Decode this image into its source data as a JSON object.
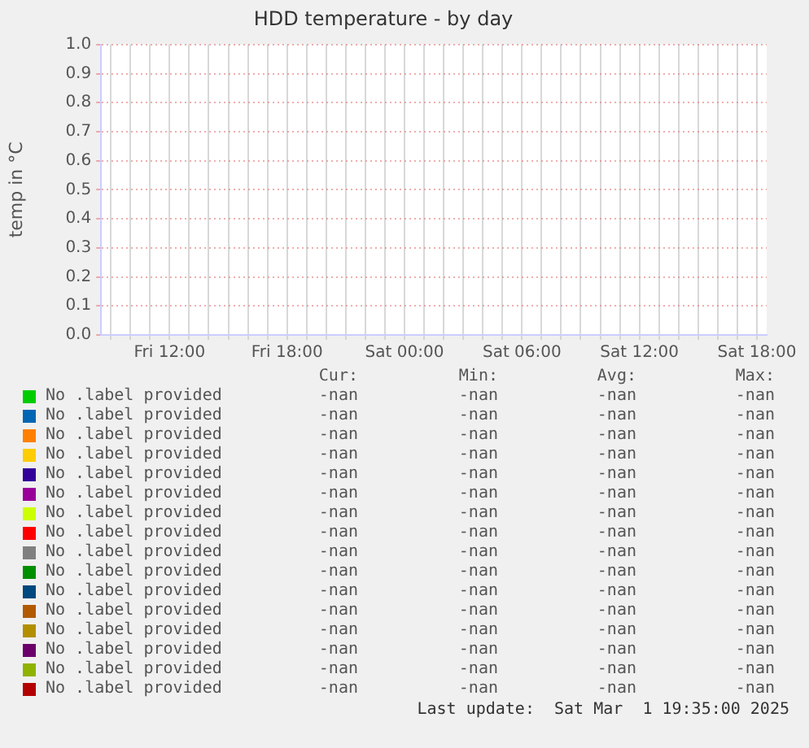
{
  "chart_data": {
    "type": "line",
    "title": "HDD temperature - by day",
    "ylabel": "temp in °C",
    "categories": [
      null,
      null,
      null,
      "Fri 12:00",
      null,
      null,
      null,
      null,
      null,
      "Fri 18:00",
      null,
      null,
      null,
      null,
      null,
      "Sat 00:00",
      null,
      null,
      null,
      null,
      null,
      "Sat 06:00",
      null,
      null,
      null,
      null,
      null,
      "Sat 12:00",
      null,
      null,
      null,
      null,
      null,
      "Sat 18:00"
    ],
    "ylim": [
      0,
      1
    ],
    "yticks": [
      {
        "value": 0,
        "label": "0.0"
      },
      {
        "value": 0.1,
        "label": "0.1"
      },
      {
        "value": 0.2,
        "label": "0.2"
      },
      {
        "value": 0.3,
        "label": "0.3"
      },
      {
        "value": 0.4,
        "label": "0.4"
      },
      {
        "value": 0.5,
        "label": "0.5"
      },
      {
        "value": 0.6,
        "label": "0.6"
      },
      {
        "value": 0.7,
        "label": "0.7"
      },
      {
        "value": 0.8,
        "label": "0.8"
      },
      {
        "value": 0.9,
        "label": "0.9"
      },
      {
        "value": 1,
        "label": "1.0"
      }
    ],
    "grid": true,
    "legend": "bottom",
    "series": [
      {
        "name": "No .label provided",
        "color": "#00cc00",
        "values": [
          null,
          null,
          null,
          null,
          null,
          null,
          null,
          null,
          null,
          null,
          null,
          null,
          null,
          null,
          null,
          null,
          null,
          null,
          null,
          null,
          null,
          null,
          null,
          null,
          null,
          null,
          null,
          null,
          null,
          null,
          null,
          null,
          null,
          null
        ]
      },
      {
        "name": "No .label provided",
        "color": "#0066b3",
        "values": [
          null,
          null,
          null,
          null,
          null,
          null,
          null,
          null,
          null,
          null,
          null,
          null,
          null,
          null,
          null,
          null,
          null,
          null,
          null,
          null,
          null,
          null,
          null,
          null,
          null,
          null,
          null,
          null,
          null,
          null,
          null,
          null,
          null,
          null
        ]
      },
      {
        "name": "No .label provided",
        "color": "#ff8000",
        "values": [
          null,
          null,
          null,
          null,
          null,
          null,
          null,
          null,
          null,
          null,
          null,
          null,
          null,
          null,
          null,
          null,
          null,
          null,
          null,
          null,
          null,
          null,
          null,
          null,
          null,
          null,
          null,
          null,
          null,
          null,
          null,
          null,
          null,
          null
        ]
      },
      {
        "name": "No .label provided",
        "color": "#ffcc00",
        "values": [
          null,
          null,
          null,
          null,
          null,
          null,
          null,
          null,
          null,
          null,
          null,
          null,
          null,
          null,
          null,
          null,
          null,
          null,
          null,
          null,
          null,
          null,
          null,
          null,
          null,
          null,
          null,
          null,
          null,
          null,
          null,
          null,
          null,
          null
        ]
      },
      {
        "name": "No .label provided",
        "color": "#330099",
        "values": [
          null,
          null,
          null,
          null,
          null,
          null,
          null,
          null,
          null,
          null,
          null,
          null,
          null,
          null,
          null,
          null,
          null,
          null,
          null,
          null,
          null,
          null,
          null,
          null,
          null,
          null,
          null,
          null,
          null,
          null,
          null,
          null,
          null,
          null
        ]
      },
      {
        "name": "No .label provided",
        "color": "#990099",
        "values": [
          null,
          null,
          null,
          null,
          null,
          null,
          null,
          null,
          null,
          null,
          null,
          null,
          null,
          null,
          null,
          null,
          null,
          null,
          null,
          null,
          null,
          null,
          null,
          null,
          null,
          null,
          null,
          null,
          null,
          null,
          null,
          null,
          null,
          null
        ]
      },
      {
        "name": "No .label provided",
        "color": "#ccff00",
        "values": [
          null,
          null,
          null,
          null,
          null,
          null,
          null,
          null,
          null,
          null,
          null,
          null,
          null,
          null,
          null,
          null,
          null,
          null,
          null,
          null,
          null,
          null,
          null,
          null,
          null,
          null,
          null,
          null,
          null,
          null,
          null,
          null,
          null,
          null
        ]
      },
      {
        "name": "No .label provided",
        "color": "#ff0000",
        "values": [
          null,
          null,
          null,
          null,
          null,
          null,
          null,
          null,
          null,
          null,
          null,
          null,
          null,
          null,
          null,
          null,
          null,
          null,
          null,
          null,
          null,
          null,
          null,
          null,
          null,
          null,
          null,
          null,
          null,
          null,
          null,
          null,
          null,
          null
        ]
      },
      {
        "name": "No .label provided",
        "color": "#808080",
        "values": [
          null,
          null,
          null,
          null,
          null,
          null,
          null,
          null,
          null,
          null,
          null,
          null,
          null,
          null,
          null,
          null,
          null,
          null,
          null,
          null,
          null,
          null,
          null,
          null,
          null,
          null,
          null,
          null,
          null,
          null,
          null,
          null,
          null,
          null
        ]
      },
      {
        "name": "No .label provided",
        "color": "#008f00",
        "values": [
          null,
          null,
          null,
          null,
          null,
          null,
          null,
          null,
          null,
          null,
          null,
          null,
          null,
          null,
          null,
          null,
          null,
          null,
          null,
          null,
          null,
          null,
          null,
          null,
          null,
          null,
          null,
          null,
          null,
          null,
          null,
          null,
          null,
          null
        ]
      },
      {
        "name": "No .label provided",
        "color": "#00487d",
        "values": [
          null,
          null,
          null,
          null,
          null,
          null,
          null,
          null,
          null,
          null,
          null,
          null,
          null,
          null,
          null,
          null,
          null,
          null,
          null,
          null,
          null,
          null,
          null,
          null,
          null,
          null,
          null,
          null,
          null,
          null,
          null,
          null,
          null,
          null
        ]
      },
      {
        "name": "No .label provided",
        "color": "#b35a00",
        "values": [
          null,
          null,
          null,
          null,
          null,
          null,
          null,
          null,
          null,
          null,
          null,
          null,
          null,
          null,
          null,
          null,
          null,
          null,
          null,
          null,
          null,
          null,
          null,
          null,
          null,
          null,
          null,
          null,
          null,
          null,
          null,
          null,
          null,
          null
        ]
      },
      {
        "name": "No .label provided",
        "color": "#b38f00",
        "values": [
          null,
          null,
          null,
          null,
          null,
          null,
          null,
          null,
          null,
          null,
          null,
          null,
          null,
          null,
          null,
          null,
          null,
          null,
          null,
          null,
          null,
          null,
          null,
          null,
          null,
          null,
          null,
          null,
          null,
          null,
          null,
          null,
          null,
          null
        ]
      },
      {
        "name": "No .label provided",
        "color": "#6b006b",
        "values": [
          null,
          null,
          null,
          null,
          null,
          null,
          null,
          null,
          null,
          null,
          null,
          null,
          null,
          null,
          null,
          null,
          null,
          null,
          null,
          null,
          null,
          null,
          null,
          null,
          null,
          null,
          null,
          null,
          null,
          null,
          null,
          null,
          null,
          null
        ]
      },
      {
        "name": "No .label provided",
        "color": "#8fb300",
        "values": [
          null,
          null,
          null,
          null,
          null,
          null,
          null,
          null,
          null,
          null,
          null,
          null,
          null,
          null,
          null,
          null,
          null,
          null,
          null,
          null,
          null,
          null,
          null,
          null,
          null,
          null,
          null,
          null,
          null,
          null,
          null,
          null,
          null,
          null
        ]
      },
      {
        "name": "No .label provided",
        "color": "#b30000",
        "values": [
          null,
          null,
          null,
          null,
          null,
          null,
          null,
          null,
          null,
          null,
          null,
          null,
          null,
          null,
          null,
          null,
          null,
          null,
          null,
          null,
          null,
          null,
          null,
          null,
          null,
          null,
          null,
          null,
          null,
          null,
          null,
          null,
          null,
          null
        ]
      }
    ],
    "annotations": [
      "Cur:",
      "Min:",
      "Avg:",
      "Max:",
      "-nan",
      "Last update:  Sat Mar  1 19:35:00 2025"
    ]
  }
}
